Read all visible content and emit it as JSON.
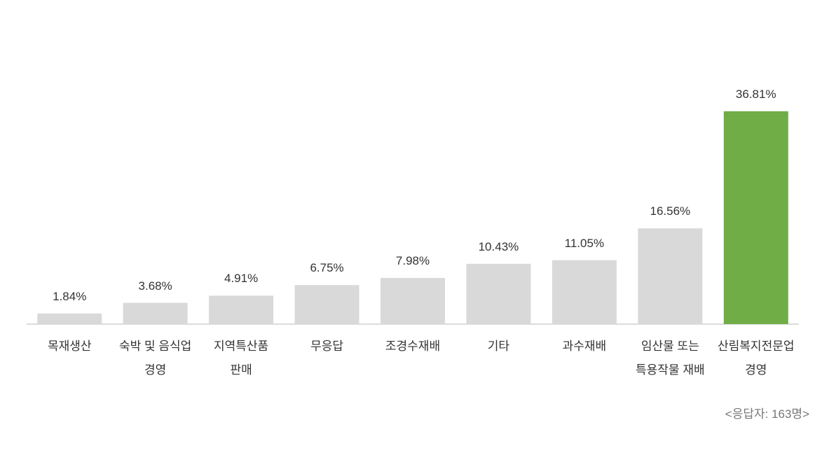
{
  "chart_data": {
    "type": "bar",
    "categories": [
      "목재생산",
      "숙박 및 음식업\n경영",
      "지역특산품\n판매",
      "무응답",
      "조경수재배",
      "기타",
      "과수재배",
      "임산물 또는\n특용작물 재배",
      "산림복지전문업\n경영"
    ],
    "values": [
      1.84,
      3.68,
      4.91,
      6.75,
      7.98,
      10.43,
      11.05,
      16.56,
      36.81
    ],
    "value_labels": [
      "1.84%",
      "3.68%",
      "4.91%",
      "6.75%",
      "7.98%",
      "10.43%",
      "11.05%",
      "16.56%",
      "36.81%"
    ],
    "colors": [
      "#d9d9d9",
      "#d9d9d9",
      "#d9d9d9",
      "#d9d9d9",
      "#d9d9d9",
      "#d9d9d9",
      "#d9d9d9",
      "#d9d9d9",
      "#70ad47"
    ],
    "note": "<응답자: 163명>"
  }
}
